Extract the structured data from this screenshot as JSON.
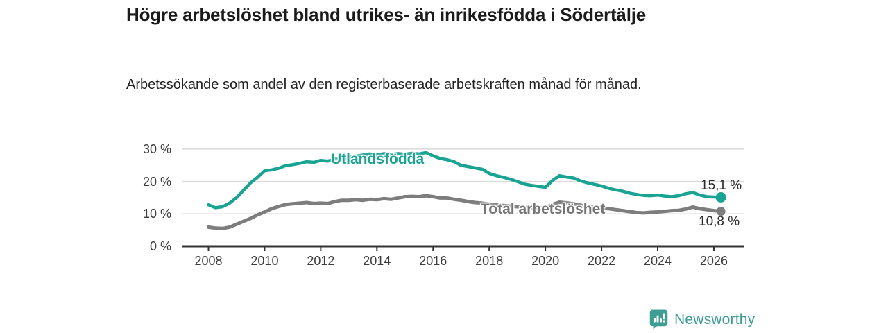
{
  "header": {
    "title": "Högre arbetslöshet bland utrikes- än inrikesfödda i Södertälje",
    "subtitle": "Arbetssökande som andel av den registerbaserade arbetskraften månad för månad."
  },
  "chart_data": {
    "type": "line",
    "title": "Högre arbetslöshet bland utrikes- än inrikesfödda i Södertälje",
    "subtitle": "Arbetssökande som andel av den registerbaserade arbetskraften månad för månad.",
    "xlabel": "",
    "ylabel": "",
    "grid": "horizontal",
    "legend_position": "inline-labels-on-lines",
    "xlim": [
      2007.1,
      2027.1
    ],
    "ylim": [
      0,
      32
    ],
    "x_ticks": [
      2008,
      2010,
      2012,
      2014,
      2016,
      2018,
      2020,
      2022,
      2024,
      2026
    ],
    "y_ticks": [
      {
        "value": 0,
        "label": "0 %"
      },
      {
        "value": 10,
        "label": "10 %"
      },
      {
        "value": 20,
        "label": "20 %"
      },
      {
        "value": 30,
        "label": "30 %"
      }
    ],
    "colors": {
      "utlandsfodda": "#18a392",
      "total": "#7d7d7d",
      "grid": "#d9d9d9",
      "axis": "#333333"
    },
    "series": [
      {
        "name": "Utlandsfödda",
        "color": "#18a392",
        "end_label": "15,1 %",
        "end_value": 15.1,
        "x": [
          2008.0,
          2008.25,
          2008.5,
          2008.75,
          2009.0,
          2009.25,
          2009.5,
          2009.75,
          2010.0,
          2010.25,
          2010.5,
          2010.75,
          2011.0,
          2011.25,
          2011.5,
          2011.75,
          2012.0,
          2012.25,
          2012.5,
          2012.75,
          2013.0,
          2013.25,
          2013.5,
          2013.75,
          2014.0,
          2014.25,
          2014.5,
          2014.75,
          2015.0,
          2015.25,
          2015.5,
          2015.75,
          2016.0,
          2016.25,
          2016.5,
          2016.75,
          2017.0,
          2017.25,
          2017.5,
          2017.75,
          2018.0,
          2018.25,
          2018.5,
          2018.75,
          2019.0,
          2019.25,
          2019.5,
          2019.75,
          2020.0,
          2020.25,
          2020.5,
          2020.75,
          2021.0,
          2021.25,
          2021.5,
          2021.75,
          2022.0,
          2022.25,
          2022.5,
          2022.75,
          2023.0,
          2023.25,
          2023.5,
          2023.75,
          2024.0,
          2024.25,
          2024.5,
          2024.75,
          2025.0,
          2025.25,
          2025.5,
          2025.75,
          2026.0,
          2026.25
        ],
        "values": [
          12.8,
          11.9,
          12.2,
          13.3,
          15.0,
          17.3,
          19.6,
          21.3,
          23.3,
          23.6,
          24.1,
          24.9,
          25.2,
          25.6,
          26.1,
          25.9,
          26.5,
          26.3,
          26.9,
          27.2,
          27.4,
          27.8,
          28.2,
          28.5,
          28.2,
          28.6,
          28.3,
          28.6,
          28.4,
          28.7,
          28.5,
          28.9,
          27.9,
          27.1,
          26.7,
          26.1,
          25.0,
          24.6,
          24.2,
          23.8,
          22.5,
          21.8,
          21.3,
          20.7,
          20.0,
          19.2,
          18.8,
          18.5,
          18.2,
          20.3,
          21.8,
          21.4,
          21.1,
          20.2,
          19.6,
          19.1,
          18.6,
          17.9,
          17.4,
          17.0,
          16.4,
          16.0,
          15.7,
          15.6,
          15.8,
          15.5,
          15.3,
          15.6,
          16.2,
          16.6,
          15.8,
          15.3,
          15.2,
          15.1
        ]
      },
      {
        "name": "Total arbetslöshet",
        "color": "#7d7d7d",
        "end_label": "10,8 %",
        "end_value": 10.8,
        "x": [
          2008.0,
          2008.25,
          2008.5,
          2008.75,
          2009.0,
          2009.25,
          2009.5,
          2009.75,
          2010.0,
          2010.25,
          2010.5,
          2010.75,
          2011.0,
          2011.25,
          2011.5,
          2011.75,
          2012.0,
          2012.25,
          2012.5,
          2012.75,
          2013.0,
          2013.25,
          2013.5,
          2013.75,
          2014.0,
          2014.25,
          2014.5,
          2014.75,
          2015.0,
          2015.25,
          2015.5,
          2015.75,
          2016.0,
          2016.25,
          2016.5,
          2016.75,
          2017.0,
          2017.25,
          2017.5,
          2017.75,
          2018.0,
          2018.25,
          2018.5,
          2018.75,
          2019.0,
          2019.25,
          2019.5,
          2019.75,
          2020.0,
          2020.25,
          2020.5,
          2020.75,
          2021.0,
          2021.25,
          2021.5,
          2021.75,
          2022.0,
          2022.25,
          2022.5,
          2022.75,
          2023.0,
          2023.25,
          2023.5,
          2023.75,
          2024.0,
          2024.25,
          2024.5,
          2024.75,
          2025.0,
          2025.25,
          2025.5,
          2025.75,
          2026.0,
          2026.25
        ],
        "values": [
          5.9,
          5.6,
          5.5,
          5.9,
          6.8,
          7.7,
          8.6,
          9.7,
          10.6,
          11.6,
          12.3,
          12.9,
          13.1,
          13.3,
          13.5,
          13.2,
          13.3,
          13.2,
          13.8,
          14.2,
          14.2,
          14.4,
          14.2,
          14.5,
          14.4,
          14.7,
          14.5,
          14.9,
          15.3,
          15.4,
          15.3,
          15.6,
          15.3,
          14.9,
          14.9,
          14.5,
          14.2,
          13.8,
          13.5,
          13.3,
          13.0,
          12.8,
          12.6,
          12.4,
          12.2,
          12.0,
          11.9,
          11.8,
          11.9,
          12.9,
          13.6,
          13.4,
          13.1,
          12.7,
          12.3,
          12.0,
          11.8,
          11.6,
          11.3,
          11.0,
          10.7,
          10.4,
          10.3,
          10.5,
          10.6,
          10.8,
          11.0,
          11.1,
          11.5,
          12.1,
          11.6,
          11.3,
          11.0,
          10.8
        ]
      }
    ]
  },
  "labels": {
    "series_utlandsfodda": "Utlandsfödda",
    "series_total": "Total arbetslöshet",
    "end_value_utlandsfodda": "15,1 %",
    "end_value_total": "10,8 %"
  },
  "footer": {
    "brand": "Newsworthy",
    "brand_color": "#3e9d95",
    "logo_icon": "speech-bubble-bar-chart-exclamation"
  }
}
